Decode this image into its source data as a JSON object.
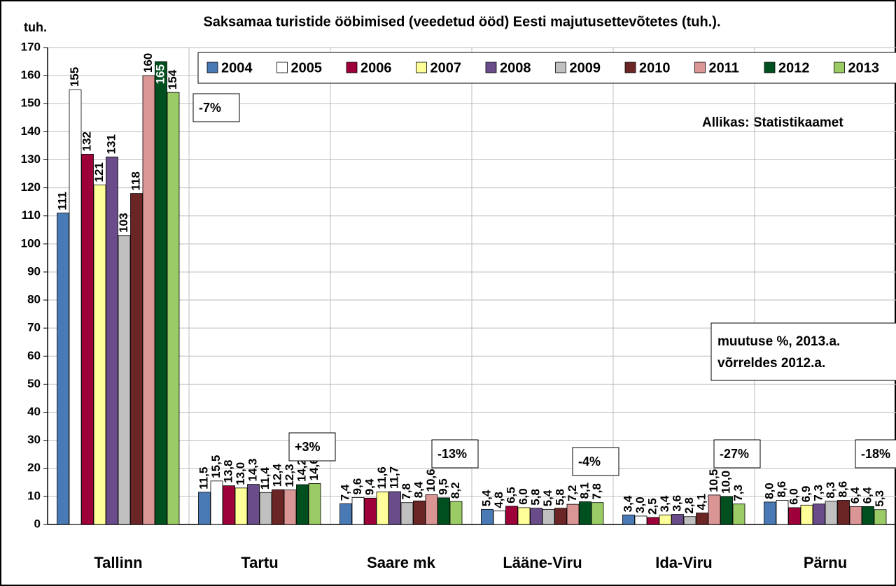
{
  "chart_data": {
    "type": "bar",
    "title": "Saksamaa turistide ööbimised (veedetud ööd) Eesti majutusettevõtetes (tuh.).",
    "y_label": "tuh.",
    "source": "Allikas: Statistikaamet",
    "note": [
      "muutuse %, 2013.a.",
      "võrreldes 2012.a."
    ],
    "annotations": [
      "-7%",
      "+3%",
      "-13%",
      "-4%",
      "-27%",
      "-18%"
    ],
    "categories": [
      "Tallinn",
      "Tartu",
      "Saare mk",
      "Lääne-Viru",
      "Ida-Viru",
      "Pärnu"
    ],
    "series": [
      {
        "name": "2004",
        "color": "#4a7ab5",
        "values": [
          111,
          11.5,
          7.4,
          5.4,
          3.4,
          8.0
        ],
        "value_labels": [
          "111",
          "11,5",
          "7,4",
          "5,4",
          "3,4",
          "8,0"
        ]
      },
      {
        "name": "2005",
        "color": "#ffffff",
        "values": [
          155,
          15.5,
          9.6,
          4.8,
          3.0,
          8.6
        ],
        "value_labels": [
          "155",
          "15,5",
          "9,6",
          "4,8",
          "3,0",
          "8,6"
        ]
      },
      {
        "name": "2006",
        "color": "#9e0039",
        "values": [
          132,
          13.8,
          9.4,
          6.5,
          2.5,
          6.0
        ],
        "value_labels": [
          "132",
          "13,8",
          "9,4",
          "6,5",
          "2,5",
          "6,0"
        ]
      },
      {
        "name": "2007",
        "color": "#ffff99",
        "values": [
          121,
          13.0,
          11.6,
          6.0,
          3.4,
          6.9
        ],
        "value_labels": [
          "121",
          "13,0",
          "11,6",
          "6,0",
          "3,4",
          "6,9"
        ]
      },
      {
        "name": "2008",
        "color": "#6b4c8a",
        "values": [
          131,
          14.3,
          11.7,
          5.8,
          3.6,
          7.3
        ],
        "value_labels": [
          "131",
          "14,3",
          "11,7",
          "5,8",
          "3,6",
          "7,3"
        ]
      },
      {
        "name": "2009",
        "color": "#c0c0c0",
        "values": [
          103,
          11.4,
          7.8,
          5.4,
          2.8,
          8.3
        ],
        "value_labels": [
          "103",
          "11,4",
          "7,8",
          "5,4",
          "2,8",
          "8,3"
        ]
      },
      {
        "name": "2010",
        "color": "#6b2525",
        "values": [
          118,
          12.4,
          8.4,
          5.8,
          4.1,
          8.6
        ],
        "value_labels": [
          "118",
          "12,4",
          "8,4",
          "5,8",
          "4,1",
          "8,6"
        ]
      },
      {
        "name": "2011",
        "color": "#d99694",
        "values": [
          160,
          12.3,
          10.6,
          7.2,
          10.5,
          6.4
        ],
        "value_labels": [
          "160",
          "12,3",
          "10,6",
          "7,2",
          "10,5",
          "6,4"
        ]
      },
      {
        "name": "2012",
        "color": "#00501f",
        "values": [
          165,
          14.2,
          9.5,
          8.1,
          10.0,
          6.4
        ],
        "value_labels": [
          "165",
          "14,2",
          "9,5",
          "8,1",
          "10,0",
          "6,4"
        ]
      },
      {
        "name": "2013",
        "color": "#9bcb65",
        "values": [
          154,
          14.6,
          8.2,
          7.8,
          7.3,
          5.3
        ],
        "value_labels": [
          "154",
          "14,6",
          "8,2",
          "7,8",
          "7,3",
          "5,3"
        ]
      }
    ],
    "ylim": [
      0,
      170
    ],
    "yticks": [
      0,
      10,
      20,
      30,
      40,
      50,
      60,
      70,
      80,
      90,
      100,
      110,
      120,
      130,
      140,
      150,
      160,
      170
    ],
    "grid": true
  }
}
